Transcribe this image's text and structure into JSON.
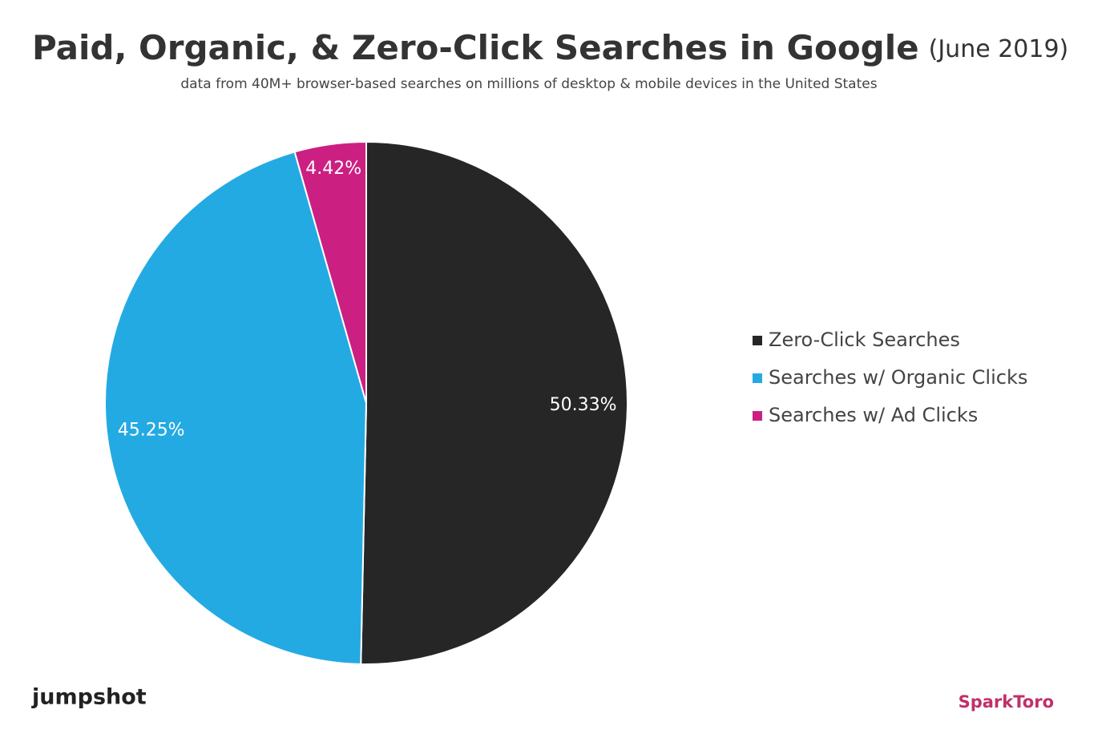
{
  "chart_data": {
    "type": "pie",
    "title": "Paid, Organic, & Zero-Click Searches in Google",
    "title_note": "(June 2019)",
    "subtitle": "data from 40M+ browser-based searches on millions of desktop & mobile devices in the United States",
    "categories": [
      "Zero-Click Searches",
      "Searches w/ Organic Clicks",
      "Searches w/ Ad Clicks"
    ],
    "values": [
      50.33,
      45.25,
      4.42
    ],
    "value_labels": [
      "50.33%",
      "45.25%",
      "4.42%"
    ],
    "colors": [
      "#262626",
      "#24aae2",
      "#cc1f82"
    ],
    "legend": "right",
    "logos": [
      "jumpshot",
      "SparkToro"
    ]
  }
}
